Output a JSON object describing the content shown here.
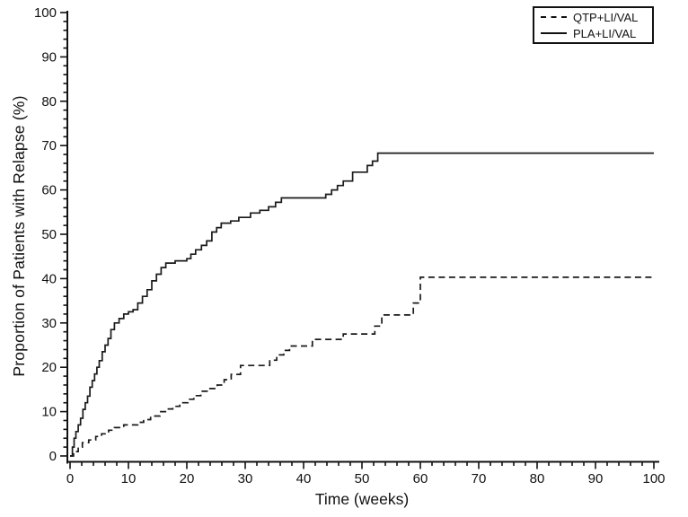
{
  "figure": {
    "background": "#ffffff",
    "axis_color": "#111111",
    "line_color": "#1a1a1a"
  },
  "chart_data": {
    "type": "line",
    "line_style": "step-after",
    "xlabel": "Time (weeks)",
    "ylabel": "Proportion of Patients with Relapse (%)",
    "xlim": [
      0,
      100
    ],
    "ylim": [
      0,
      100
    ],
    "x_major_ticks": [
      0,
      10,
      20,
      30,
      40,
      50,
      60,
      70,
      80,
      90,
      100
    ],
    "y_major_ticks": [
      0,
      10,
      20,
      30,
      40,
      50,
      60,
      70,
      80,
      90,
      100
    ],
    "minor_tick_interval": 2,
    "grid": false,
    "legend_position": "top-right",
    "series": [
      {
        "name": "QTP+LI/VAL",
        "style": "dashed",
        "color": "#1a1a1a",
        "points": [
          [
            0,
            0
          ],
          [
            0.6,
            1
          ],
          [
            1.4,
            2
          ],
          [
            2.1,
            3
          ],
          [
            3.2,
            3.6
          ],
          [
            4.4,
            4.4
          ],
          [
            5.4,
            5
          ],
          [
            6.6,
            5.8
          ],
          [
            7.6,
            6.4
          ],
          [
            9.2,
            7
          ],
          [
            11.6,
            7.6
          ],
          [
            12.6,
            8.2
          ],
          [
            13.8,
            9
          ],
          [
            15.4,
            10
          ],
          [
            16.6,
            10.6
          ],
          [
            17.6,
            11.2
          ],
          [
            18.8,
            12
          ],
          [
            20.2,
            12.8
          ],
          [
            21.2,
            13.6
          ],
          [
            22.4,
            14.6
          ],
          [
            23.6,
            15.2
          ],
          [
            25.2,
            16
          ],
          [
            26.4,
            17.2
          ],
          [
            27.6,
            18.4
          ],
          [
            29.2,
            20.4
          ],
          [
            34.2,
            21.6
          ],
          [
            35.4,
            22.8
          ],
          [
            36.6,
            23.8
          ],
          [
            37.6,
            24.8
          ],
          [
            41.5,
            26.3
          ],
          [
            46.8,
            27.5
          ],
          [
            52.2,
            29.3
          ],
          [
            53.4,
            31.8
          ],
          [
            58.8,
            34.5
          ],
          [
            60,
            40.3
          ],
          [
            100,
            40.3
          ]
        ]
      },
      {
        "name": "PLA+LI/VAL",
        "style": "solid",
        "color": "#1a1a1a",
        "points": [
          [
            0,
            0
          ],
          [
            0.4,
            2
          ],
          [
            0.7,
            4
          ],
          [
            1.0,
            5.5
          ],
          [
            1.4,
            7
          ],
          [
            1.8,
            8.5
          ],
          [
            2.2,
            10.5
          ],
          [
            2.6,
            12
          ],
          [
            3.0,
            13.5
          ],
          [
            3.4,
            15.5
          ],
          [
            3.8,
            17
          ],
          [
            4.2,
            18.5
          ],
          [
            4.6,
            20
          ],
          [
            5.0,
            21.5
          ],
          [
            5.5,
            23.5
          ],
          [
            6.0,
            25
          ],
          [
            6.5,
            26.5
          ],
          [
            7.0,
            28.5
          ],
          [
            7.6,
            30
          ],
          [
            8.4,
            31
          ],
          [
            9.2,
            32
          ],
          [
            10.0,
            32.5
          ],
          [
            10.8,
            33
          ],
          [
            11.6,
            34.5
          ],
          [
            12.4,
            36
          ],
          [
            13.2,
            37.5
          ],
          [
            14.0,
            39.5
          ],
          [
            14.8,
            41
          ],
          [
            15.6,
            42.5
          ],
          [
            16.4,
            43.5
          ],
          [
            18.0,
            44
          ],
          [
            20.0,
            44.5
          ],
          [
            20.7,
            45.5
          ],
          [
            21.5,
            46.5
          ],
          [
            22.5,
            47.5
          ],
          [
            23.4,
            48.5
          ],
          [
            24.3,
            50.5
          ],
          [
            25.1,
            51.5
          ],
          [
            25.9,
            52.5
          ],
          [
            27.5,
            53
          ],
          [
            28.9,
            53.8
          ],
          [
            30.9,
            54.8
          ],
          [
            32.5,
            55.4
          ],
          [
            34.0,
            56.2
          ],
          [
            35.2,
            57.2
          ],
          [
            36.2,
            58.2
          ],
          [
            43.8,
            59
          ],
          [
            44.8,
            60
          ],
          [
            45.8,
            61
          ],
          [
            46.8,
            62
          ],
          [
            48.4,
            64
          ],
          [
            50.9,
            65.5
          ],
          [
            51.8,
            66.5
          ],
          [
            52.7,
            68.3
          ],
          [
            100,
            68.3
          ]
        ]
      }
    ]
  }
}
